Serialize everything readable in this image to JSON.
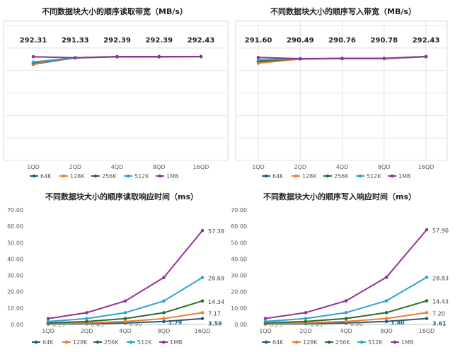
{
  "chart_data": [
    {
      "type": "line",
      "title": "不同数据块大小的顺序读取带宽（MB/s）",
      "categories": [
        "1QD",
        "2QD",
        "4QD",
        "8QD",
        "16QD"
      ],
      "ylim": [
        200,
        300
      ],
      "yticks_shown": false,
      "grid": "horizontal",
      "legend": "bottom",
      "top_labels": [
        "292.31",
        "291.33",
        "292.39",
        "292.39",
        "292.43"
      ],
      "series": [
        {
          "name": "64K",
          "color": "#1f5f7a",
          "values": [
            285.5,
            291.3,
            292.2,
            292.1,
            292.4
          ]
        },
        {
          "name": "128K",
          "color": "#ed7d31",
          "values": [
            286.0,
            291.2,
            292.1,
            292.0,
            292.3
          ]
        },
        {
          "name": "256K",
          "color": "#2e6b30",
          "values": [
            287.0,
            291.2,
            292.2,
            292.2,
            292.4
          ]
        },
        {
          "name": "512K",
          "color": "#2ea3d4",
          "values": [
            287.5,
            291.3,
            292.3,
            292.3,
            292.4
          ]
        },
        {
          "name": "1MB",
          "color": "#8e3595",
          "values": [
            292.31,
            291.33,
            292.39,
            292.39,
            292.43
          ]
        }
      ]
    },
    {
      "type": "line",
      "title": "不同数据块大小的顺序写入带宽（MB/s）",
      "categories": [
        "1QD",
        "2QD",
        "4QD",
        "8QD",
        "16QD"
      ],
      "ylim": [
        200,
        300
      ],
      "yticks_shown": false,
      "grid": "both",
      "legend": "bottom",
      "top_labels": [
        "291.60",
        "290.49",
        "290.76",
        "290.78",
        "292.43"
      ],
      "series": [
        {
          "name": "64K",
          "color": "#1f5f7a",
          "values": [
            287.5,
            290.3,
            290.6,
            290.6,
            292.3
          ]
        },
        {
          "name": "128K",
          "color": "#ed7d31",
          "values": [
            286.5,
            290.2,
            290.5,
            290.5,
            292.2
          ]
        },
        {
          "name": "256K",
          "color": "#2e6b30",
          "values": [
            288.5,
            290.4,
            290.7,
            290.7,
            292.4
          ]
        },
        {
          "name": "512K",
          "color": "#2ea3d4",
          "values": [
            289.5,
            290.4,
            290.7,
            290.7,
            292.4
          ]
        },
        {
          "name": "1MB",
          "color": "#8e3595",
          "values": [
            291.6,
            290.49,
            290.76,
            290.78,
            292.43
          ]
        }
      ]
    },
    {
      "type": "line",
      "title": "不同数据块大小的顺序读取响应时间（ms）",
      "categories": [
        "1QD",
        "2QD",
        "4QD",
        "8QD",
        "16QD"
      ],
      "ylim": [
        0,
        70
      ],
      "yticks": [
        "0.00",
        "10.00",
        "20.00",
        "30.00",
        "40.00",
        "50.00",
        "60.00",
        "70.00"
      ],
      "grid": "none",
      "legend": "bottom",
      "data_labels": [
        "0.23",
        "0.45",
        "0.90",
        "1.79",
        "3.59",
        "7.17",
        "14.34",
        "28.69",
        "57.38"
      ],
      "series": [
        {
          "name": "64K",
          "color": "#1f5f7a",
          "values": [
            0.23,
            0.45,
            0.9,
            1.79,
            3.59
          ]
        },
        {
          "name": "128K",
          "color": "#ed7d31",
          "values": [
            0.45,
            0.9,
            1.79,
            3.59,
            7.17
          ]
        },
        {
          "name": "256K",
          "color": "#2e6b30",
          "values": [
            0.9,
            1.79,
            3.59,
            7.17,
            14.34
          ]
        },
        {
          "name": "512K",
          "color": "#2ea3d4",
          "values": [
            1.79,
            3.59,
            7.17,
            14.34,
            28.69
          ]
        },
        {
          "name": "1MB",
          "color": "#8e3595",
          "values": [
            3.59,
            7.17,
            14.34,
            28.69,
            57.38
          ]
        }
      ]
    },
    {
      "type": "line",
      "title": "不同数据块大小的顺序写入响应时间（ms）",
      "categories": [
        "1QD",
        "2QD",
        "4QD",
        "8QD",
        "16QD"
      ],
      "ylim": [
        0,
        70
      ],
      "yticks": [
        "0.00",
        "10.00",
        "20.00",
        "30.00",
        "40.00",
        "50.00",
        "60.00",
        "70.00"
      ],
      "grid": "none",
      "legend": "bottom",
      "data_labels": [
        "0.23",
        "0.45",
        "0.90",
        "1.80",
        "3.61",
        "7.20",
        "14.43",
        "28.83",
        "57.90"
      ],
      "series": [
        {
          "name": "64K",
          "color": "#1f5f7a",
          "values": [
            0.23,
            0.45,
            0.9,
            1.8,
            3.61
          ]
        },
        {
          "name": "128K",
          "color": "#ed7d31",
          "values": [
            0.45,
            0.9,
            1.8,
            3.61,
            7.2
          ]
        },
        {
          "name": "256K",
          "color": "#2e6b30",
          "values": [
            0.9,
            1.8,
            3.61,
            7.2,
            14.43
          ]
        },
        {
          "name": "512K",
          "color": "#2ea3d4",
          "values": [
            1.8,
            3.61,
            7.2,
            14.43,
            28.83
          ]
        },
        {
          "name": "1MB",
          "color": "#8e3595",
          "values": [
            3.61,
            7.2,
            14.43,
            28.83,
            57.9
          ]
        }
      ]
    }
  ]
}
